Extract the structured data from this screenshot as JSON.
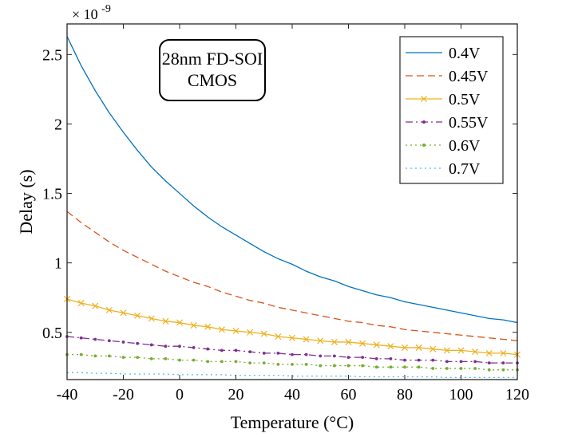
{
  "chart_data": {
    "type": "line",
    "xlabel": "Temperature (°C)",
    "ylabel": "Delay (s)",
    "xlim": [
      -40,
      120
    ],
    "ylim": [
      0.16,
      2.72
    ],
    "y_multiplier": "× 10",
    "y_exponent": "-9",
    "xticks": [
      -40,
      -20,
      0,
      20,
      40,
      60,
      80,
      100,
      120
    ],
    "xtick_labels": [
      "-40",
      "-20",
      "0",
      "20",
      "40",
      "60",
      "80",
      "100",
      "120"
    ],
    "yticks": [
      0.5,
      1,
      1.5,
      2,
      2.5
    ],
    "ytick_labels": [
      "0.5",
      "1",
      "1.5",
      "2",
      "2.5"
    ],
    "grid": false,
    "legend_position": "top-right",
    "annotation": [
      "28nm FD-SOI",
      "CMOS"
    ],
    "x": [
      -40,
      -35,
      -30,
      -25,
      -20,
      -15,
      -10,
      -5,
      0,
      5,
      10,
      15,
      20,
      25,
      30,
      35,
      40,
      45,
      50,
      55,
      60,
      65,
      70,
      75,
      80,
      85,
      90,
      95,
      100,
      105,
      110,
      115,
      120
    ],
    "series": [
      {
        "name": "0.4V",
        "color": "#0072BD",
        "dash": "solid",
        "marker": "none",
        "values": [
          2.63,
          2.42,
          2.24,
          2.08,
          1.94,
          1.81,
          1.69,
          1.59,
          1.5,
          1.41,
          1.33,
          1.26,
          1.2,
          1.14,
          1.08,
          1.03,
          0.99,
          0.94,
          0.9,
          0.87,
          0.83,
          0.8,
          0.77,
          0.75,
          0.72,
          0.7,
          0.68,
          0.66,
          0.64,
          0.62,
          0.6,
          0.59,
          0.57
        ]
      },
      {
        "name": "0.45V",
        "color": "#D95319",
        "dash": "dashed",
        "marker": "none",
        "values": [
          1.37,
          1.29,
          1.22,
          1.15,
          1.09,
          1.04,
          0.99,
          0.94,
          0.9,
          0.86,
          0.83,
          0.79,
          0.76,
          0.73,
          0.71,
          0.68,
          0.66,
          0.64,
          0.62,
          0.6,
          0.58,
          0.57,
          0.55,
          0.54,
          0.52,
          0.51,
          0.5,
          0.49,
          0.48,
          0.47,
          0.46,
          0.45,
          0.44
        ]
      },
      {
        "name": "0.5V",
        "color": "#EDB120",
        "dash": "solid",
        "marker": "x",
        "values": [
          0.74,
          0.71,
          0.69,
          0.66,
          0.64,
          0.62,
          0.6,
          0.58,
          0.57,
          0.55,
          0.54,
          0.52,
          0.51,
          0.5,
          0.49,
          0.47,
          0.46,
          0.45,
          0.44,
          0.43,
          0.43,
          0.42,
          0.41,
          0.4,
          0.39,
          0.39,
          0.38,
          0.37,
          0.37,
          0.36,
          0.35,
          0.35,
          0.34
        ]
      },
      {
        "name": "0.55V",
        "color": "#7E2F8E",
        "dash": "dashdot",
        "marker": "dot",
        "values": [
          0.47,
          0.46,
          0.45,
          0.44,
          0.43,
          0.42,
          0.41,
          0.4,
          0.4,
          0.39,
          0.38,
          0.37,
          0.37,
          0.36,
          0.35,
          0.35,
          0.34,
          0.34,
          0.33,
          0.33,
          0.32,
          0.32,
          0.31,
          0.31,
          0.3,
          0.3,
          0.3,
          0.29,
          0.29,
          0.29,
          0.28,
          0.28,
          0.28
        ]
      },
      {
        "name": "0.6V",
        "color": "#77AC30",
        "dash": "dotted",
        "marker": "dot",
        "values": [
          0.34,
          0.34,
          0.33,
          0.33,
          0.32,
          0.32,
          0.31,
          0.31,
          0.3,
          0.3,
          0.29,
          0.29,
          0.29,
          0.28,
          0.28,
          0.27,
          0.27,
          0.27,
          0.26,
          0.26,
          0.26,
          0.26,
          0.25,
          0.25,
          0.25,
          0.25,
          0.24,
          0.24,
          0.24,
          0.24,
          0.23,
          0.23,
          0.23
        ]
      },
      {
        "name": "0.7V",
        "color": "#4DBEEE",
        "dash": "dotted",
        "marker": "none",
        "values": [
          0.21,
          0.21,
          0.205,
          0.205,
          0.2,
          0.2,
          0.2,
          0.2,
          0.195,
          0.195,
          0.195,
          0.195,
          0.19,
          0.19,
          0.19,
          0.19,
          0.185,
          0.185,
          0.185,
          0.185,
          0.185,
          0.18,
          0.18,
          0.18,
          0.18,
          0.18,
          0.18,
          0.175,
          0.175,
          0.175,
          0.175,
          0.175,
          0.175
        ]
      }
    ]
  }
}
